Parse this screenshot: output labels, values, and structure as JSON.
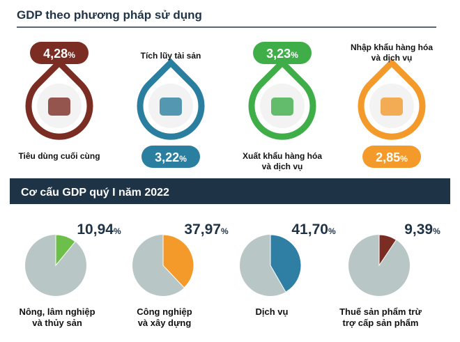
{
  "header": {
    "title": "GDP theo phương pháp sử dụng"
  },
  "usage": [
    {
      "label": [
        "Tiêu dùng cuối cùng"
      ],
      "value": "4,28",
      "unit": "%",
      "color": "#7b2d24",
      "pill": "top"
    },
    {
      "label": [
        "Tích lũy tài sản"
      ],
      "value": "3,22",
      "unit": "%",
      "color": "#2a7fa0",
      "pill": "bottom"
    },
    {
      "label": [
        "Xuất khẩu hàng hóa",
        "và dịch vụ"
      ],
      "value": "3,23",
      "unit": "%",
      "color": "#3fae49",
      "pill": "top"
    },
    {
      "label": [
        "Nhập khẩu hàng hóa",
        "và dịch vụ"
      ],
      "value": "2,85",
      "unit": "%",
      "color": "#f39a2b",
      "pill": "bottom"
    }
  ],
  "section": {
    "title": "Cơ cấu GDP quý I năm 2022"
  },
  "chart_data": {
    "type": "pie",
    "base_color": "#b9c6c6",
    "items": [
      {
        "label": [
          "Nông, lâm nghiệp",
          "và thủy sản"
        ],
        "value": 10.94,
        "value_label": "10,94",
        "unit": "%",
        "color": "#6cc04a"
      },
      {
        "label": [
          "Công nghiệp",
          "và xây dựng"
        ],
        "value": 37.97,
        "value_label": "37,97",
        "unit": "%",
        "color": "#f39a2b"
      },
      {
        "label": [
          "Dịch vụ"
        ],
        "value": 41.7,
        "value_label": "41,70",
        "unit": "%",
        "color": "#2f7ea3"
      },
      {
        "label": [
          "Thuế sản phẩm trừ",
          "trợ cấp sản phẩm"
        ],
        "value": 9.39,
        "value_label": "9,39",
        "unit": "%",
        "color": "#7b2d24"
      }
    ]
  }
}
